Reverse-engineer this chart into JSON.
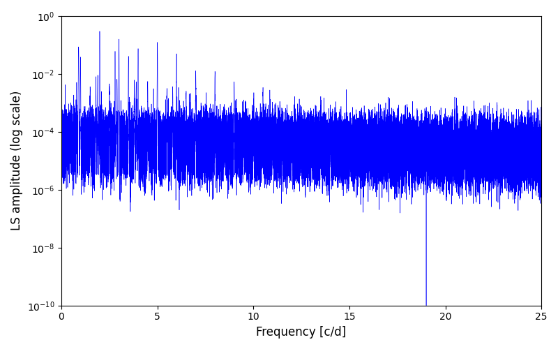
{
  "title": "",
  "xlabel": "Frequency [c/d]",
  "ylabel": "LS amplitude (log scale)",
  "xlim": [
    0,
    25
  ],
  "ylim": [
    1e-10,
    1.0
  ],
  "line_color": "#0000FF",
  "background_color": "#ffffff",
  "figsize": [
    8.0,
    5.0
  ],
  "dpi": 100,
  "seed": 12345,
  "n_points": 50000,
  "freq_max": 25.0
}
